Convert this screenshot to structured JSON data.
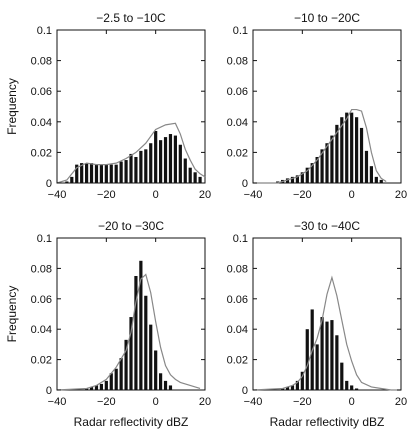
{
  "chart_data": [
    {
      "type": "bar",
      "title": "−2.5 to −10C",
      "xlabel": "",
      "ylabel": "Frequency",
      "xlim": [
        -40,
        20
      ],
      "ylim": [
        0,
        0.1
      ],
      "xticks": [
        -40,
        -20,
        0,
        20
      ],
      "yticks": [
        0,
        0.02,
        0.04,
        0.06,
        0.08,
        0.1
      ],
      "xtick_labels": [
        "−40",
        "−20",
        "0",
        "20"
      ],
      "ytick_labels": [
        "0",
        "0.02",
        "0.04",
        "0.06",
        "0.08",
        "0.1"
      ],
      "bars": {
        "x": [
          -36,
          -34,
          -32,
          -30,
          -28,
          -26,
          -24,
          -22,
          -20,
          -18,
          -16,
          -14,
          -12,
          -10,
          -8,
          -6,
          -4,
          -2,
          0,
          2,
          4,
          6,
          8,
          10,
          12,
          14,
          16,
          18
        ],
        "values": [
          0.001,
          0.004,
          0.012,
          0.013,
          0.013,
          0.013,
          0.012,
          0.012,
          0.012,
          0.012,
          0.012,
          0.014,
          0.015,
          0.019,
          0.017,
          0.021,
          0.022,
          0.026,
          0.034,
          0.028,
          0.03,
          0.032,
          0.031,
          0.025,
          0.016,
          0.01,
          0.007,
          0.004
        ]
      },
      "line": {
        "x": [
          -40,
          -36,
          -32,
          -28,
          -24,
          -20,
          -16,
          -12,
          -8,
          -4,
          0,
          4,
          8,
          10,
          12,
          14,
          16,
          18,
          20
        ],
        "values": [
          0.0,
          0.002,
          0.01,
          0.013,
          0.012,
          0.012,
          0.013,
          0.016,
          0.02,
          0.026,
          0.035,
          0.038,
          0.039,
          0.032,
          0.022,
          0.015,
          0.009,
          0.006,
          0.004
        ]
      }
    },
    {
      "type": "bar",
      "title": "−10 to −20C",
      "xlabel": "",
      "ylabel": "",
      "xlim": [
        -40,
        20
      ],
      "ylim": [
        0,
        0.1
      ],
      "xticks": [
        -40,
        -20,
        0,
        20
      ],
      "yticks": [
        0,
        0.02,
        0.04,
        0.06,
        0.08,
        0.1
      ],
      "xtick_labels": [
        "−40",
        "−20",
        "0",
        "20"
      ],
      "ytick_labels": [
        "0",
        "0.02",
        "0.04",
        "0.06",
        "0.08",
        "0.1"
      ],
      "bars": {
        "x": [
          -30,
          -28,
          -26,
          -24,
          -22,
          -20,
          -18,
          -16,
          -14,
          -12,
          -10,
          -8,
          -6,
          -4,
          -2,
          0,
          2,
          4,
          6,
          8,
          10,
          12
        ],
        "values": [
          0.001,
          0.002,
          0.003,
          0.004,
          0.005,
          0.007,
          0.01,
          0.013,
          0.017,
          0.022,
          0.026,
          0.031,
          0.038,
          0.043,
          0.046,
          0.046,
          0.043,
          0.036,
          0.021,
          0.011,
          0.004,
          0.002
        ]
      },
      "line": {
        "x": [
          -40,
          -30,
          -26,
          -22,
          -18,
          -14,
          -10,
          -6,
          -2,
          0,
          2,
          4,
          6,
          8,
          10,
          12,
          14
        ],
        "values": [
          0.0,
          0.0,
          0.002,
          0.004,
          0.008,
          0.015,
          0.024,
          0.033,
          0.042,
          0.048,
          0.048,
          0.047,
          0.036,
          0.02,
          0.008,
          0.003,
          0.001
        ]
      }
    },
    {
      "type": "bar",
      "title": "−20 to −30C",
      "xlabel": "Radar reflectivity dBZ",
      "ylabel": "Frequency",
      "xlim": [
        -40,
        20
      ],
      "ylim": [
        0,
        0.1
      ],
      "xticks": [
        -40,
        -20,
        0,
        20
      ],
      "yticks": [
        0,
        0.02,
        0.04,
        0.06,
        0.08,
        0.1
      ],
      "xtick_labels": [
        "−40",
        "−20",
        "0",
        "20"
      ],
      "ytick_labels": [
        "0",
        "0.02",
        "0.04",
        "0.06",
        "0.08",
        "0.1"
      ],
      "bars": {
        "x": [
          -28,
          -26,
          -24,
          -22,
          -20,
          -18,
          -16,
          -14,
          -12,
          -10,
          -8,
          -6,
          -4,
          -2,
          0,
          2,
          4,
          6
        ],
        "values": [
          0.001,
          0.002,
          0.003,
          0.004,
          0.006,
          0.011,
          0.014,
          0.021,
          0.033,
          0.048,
          0.075,
          0.085,
          0.062,
          0.043,
          0.026,
          0.011,
          0.006,
          0.003
        ]
      },
      "line": {
        "x": [
          -40,
          -28,
          -24,
          -20,
          -16,
          -12,
          -10,
          -8,
          -6,
          -4,
          -2,
          0,
          2,
          4,
          6,
          8,
          10,
          14,
          18
        ],
        "values": [
          0.0,
          0.001,
          0.003,
          0.007,
          0.015,
          0.026,
          0.038,
          0.058,
          0.073,
          0.076,
          0.064,
          0.045,
          0.028,
          0.016,
          0.01,
          0.007,
          0.005,
          0.003,
          0.001
        ]
      }
    },
    {
      "type": "bar",
      "title": "−30 to −40C",
      "xlabel": "Radar reflectivity dBZ",
      "ylabel": "",
      "xlim": [
        -40,
        20
      ],
      "ylim": [
        0,
        0.1
      ],
      "xticks": [
        -40,
        -20,
        0,
        20
      ],
      "yticks": [
        0,
        0.02,
        0.04,
        0.06,
        0.08,
        0.1
      ],
      "xtick_labels": [
        "−40",
        "−20",
        "0",
        "20"
      ],
      "ytick_labels": [
        "0",
        "0.02",
        "0.04",
        "0.06",
        "0.08",
        "0.1"
      ],
      "bars": {
        "x": [
          -28,
          -26,
          -24,
          -22,
          -20,
          -18,
          -16,
          -14,
          -12,
          -10,
          -8,
          -6,
          -4,
          -2,
          0,
          2
        ],
        "values": [
          0.001,
          0.002,
          0.003,
          0.006,
          0.012,
          0.04,
          0.053,
          0.03,
          0.048,
          0.045,
          0.046,
          0.036,
          0.018,
          0.006,
          0.003,
          0.001
        ]
      },
      "line": {
        "x": [
          -40,
          -28,
          -24,
          -22,
          -20,
          -18,
          -16,
          -14,
          -12,
          -10,
          -8,
          -6,
          -4,
          -2,
          0,
          2,
          4,
          8,
          12,
          16,
          20
        ],
        "values": [
          0.0,
          0.001,
          0.003,
          0.005,
          0.009,
          0.016,
          0.026,
          0.034,
          0.046,
          0.063,
          0.074,
          0.062,
          0.046,
          0.03,
          0.019,
          0.01,
          0.005,
          0.002,
          0.001,
          0.0,
          0.0
        ]
      }
    }
  ],
  "colors": {
    "bars": "#111111",
    "line": "#888888",
    "axes": "#111111"
  }
}
